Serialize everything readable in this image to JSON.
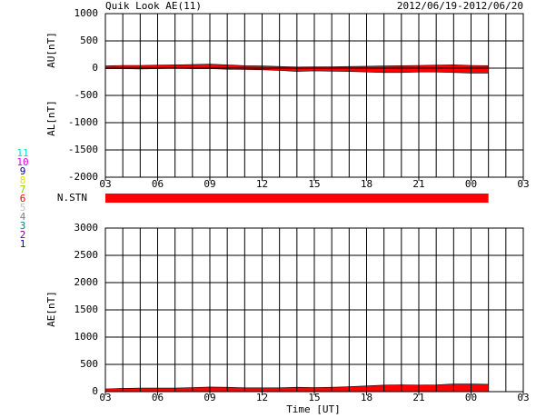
{
  "header": {
    "title": "Quik Look AE(11)",
    "date_range": "2012/06/19-2012/06/20"
  },
  "chart_data": [
    {
      "type": "area",
      "ylabels": [
        "AU[nT]",
        "AL[nT]"
      ],
      "x": [
        3,
        4,
        5,
        6,
        7,
        8,
        9,
        10,
        11,
        12,
        13,
        14,
        15,
        16,
        17,
        18,
        19,
        20,
        21,
        22,
        23,
        24,
        25
      ],
      "series": [
        {
          "name": "AU",
          "color": "#ff0000",
          "values": [
            40,
            50,
            50,
            55,
            60,
            65,
            75,
            60,
            45,
            40,
            30,
            20,
            25,
            25,
            30,
            35,
            40,
            45,
            50,
            55,
            60,
            50,
            45
          ]
        },
        {
          "name": "AL",
          "color": "#ff0000",
          "values": [
            -10,
            -10,
            -15,
            -10,
            -5,
            -10,
            -10,
            -20,
            -25,
            -30,
            -40,
            -60,
            -50,
            -55,
            -60,
            -70,
            -80,
            -80,
            -70,
            -70,
            -80,
            -90,
            -90
          ]
        }
      ],
      "xlim": [
        3,
        27
      ],
      "xticks": [
        {
          "value": 3,
          "label": "03"
        },
        {
          "value": 6,
          "label": "06"
        },
        {
          "value": 9,
          "label": "09"
        },
        12,
        15,
        18,
        21,
        {
          "value": 24,
          "label": "00"
        },
        {
          "value": 27,
          "label": "03"
        }
      ],
      "xminor_step": 1,
      "ylim": [
        -2000,
        1000
      ],
      "yticks": [
        1000,
        500,
        0,
        -500,
        -1000,
        -1500,
        -2000
      ],
      "grid": true
    },
    {
      "type": "area",
      "ylabels": [
        "AE[nT]"
      ],
      "xlabel": "Time [UT]",
      "x": [
        3,
        4,
        5,
        6,
        7,
        8,
        9,
        10,
        11,
        12,
        13,
        14,
        15,
        16,
        17,
        18,
        19,
        20,
        21,
        22,
        23,
        24,
        25
      ],
      "series": [
        {
          "name": "AE",
          "color": "#ff0000",
          "values": [
            50,
            60,
            65,
            65,
            65,
            75,
            85,
            80,
            70,
            70,
            70,
            80,
            75,
            80,
            90,
            105,
            120,
            125,
            120,
            125,
            140,
            140,
            135
          ]
        }
      ],
      "xlim": [
        3,
        27
      ],
      "xticks": [
        {
          "value": 3,
          "label": "03"
        },
        {
          "value": 6,
          "label": "06"
        },
        {
          "value": 9,
          "label": "09"
        },
        12,
        15,
        18,
        21,
        {
          "value": 24,
          "label": "00"
        },
        {
          "value": 27,
          "label": "03"
        }
      ],
      "xminor_step": 1,
      "ylim": [
        0,
        3000
      ],
      "yticks": [
        3000,
        2500,
        2000,
        1500,
        1000,
        500,
        0
      ],
      "grid": true
    }
  ],
  "stations": {
    "label": "N.STN",
    "range": [
      3,
      25
    ],
    "color": "#ff0000",
    "legend": [
      {
        "name": "11",
        "color": "#00e0e0"
      },
      {
        "name": "10",
        "color": "#e000e0"
      },
      {
        "name": "9",
        "color": "#000090"
      },
      {
        "name": "8",
        "color": "#e8e000"
      },
      {
        "name": "7",
        "color": "#90d000"
      },
      {
        "name": "6",
        "color": "#ff0000"
      },
      {
        "name": "5",
        "color": "#c0c0c0"
      },
      {
        "name": "4",
        "color": "#808080"
      },
      {
        "name": "3",
        "color": "#008080"
      },
      {
        "name": "2",
        "color": "#800080"
      },
      {
        "name": "1",
        "color": "#0000e0"
      }
    ]
  }
}
